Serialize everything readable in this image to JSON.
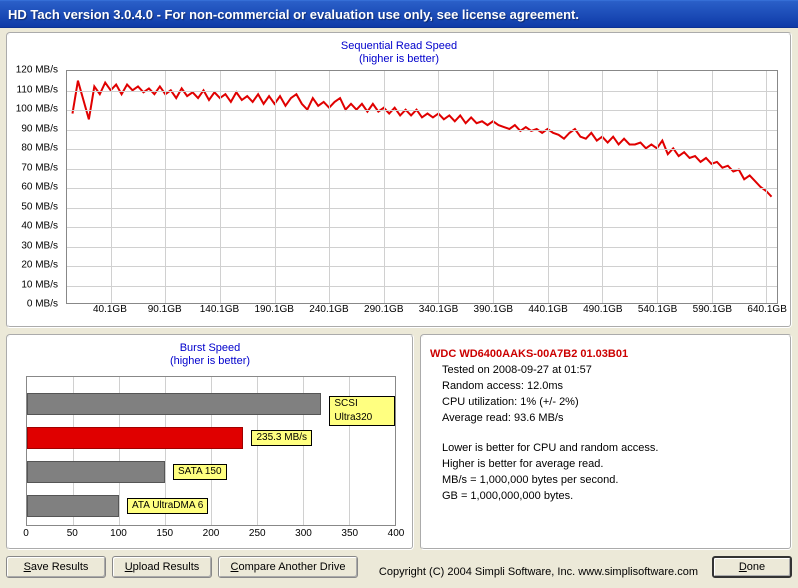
{
  "titlebar": "HD Tach version 3.0.4.0  - For non-commercial or evaluation use only, see license agreement.",
  "seq_chart": {
    "title_line1": "Sequential Read Speed",
    "title_line2": "(higher is better)",
    "ylim": [
      0,
      120
    ],
    "ytick_step": 10,
    "y_unit": "MB/s",
    "x_ticks": [
      40.1,
      90.1,
      140.1,
      190.1,
      240.1,
      290.1,
      340.1,
      390.1,
      440.1,
      490.1,
      540.1,
      590.1,
      640.1
    ],
    "x_unit": "GB",
    "x_max": 650,
    "line_color": "#e00000",
    "line_width": 2,
    "grid_color": "#d0d0d0",
    "background": "#ffffff",
    "data": [
      [
        5,
        98
      ],
      [
        10,
        115
      ],
      [
        15,
        105
      ],
      [
        20,
        95
      ],
      [
        25,
        112
      ],
      [
        30,
        108
      ],
      [
        35,
        114
      ],
      [
        40,
        110
      ],
      [
        45,
        113
      ],
      [
        50,
        108
      ],
      [
        55,
        113
      ],
      [
        60,
        110
      ],
      [
        65,
        112
      ],
      [
        70,
        109
      ],
      [
        75,
        111
      ],
      [
        80,
        108
      ],
      [
        85,
        112
      ],
      [
        90,
        108
      ],
      [
        95,
        110
      ],
      [
        100,
        106
      ],
      [
        105,
        111
      ],
      [
        110,
        107
      ],
      [
        115,
        109
      ],
      [
        120,
        106
      ],
      [
        125,
        110
      ],
      [
        130,
        105
      ],
      [
        135,
        109
      ],
      [
        140,
        106
      ],
      [
        145,
        108
      ],
      [
        150,
        104
      ],
      [
        155,
        109
      ],
      [
        160,
        105
      ],
      [
        165,
        107
      ],
      [
        170,
        104
      ],
      [
        175,
        108
      ],
      [
        180,
        103
      ],
      [
        185,
        107
      ],
      [
        190,
        103
      ],
      [
        195,
        107
      ],
      [
        200,
        102
      ],
      [
        205,
        106
      ],
      [
        210,
        108
      ],
      [
        215,
        103
      ],
      [
        220,
        100
      ],
      [
        225,
        106
      ],
      [
        230,
        102
      ],
      [
        235,
        104
      ],
      [
        240,
        101
      ],
      [
        245,
        104
      ],
      [
        250,
        106
      ],
      [
        255,
        100
      ],
      [
        260,
        103
      ],
      [
        265,
        100
      ],
      [
        270,
        103
      ],
      [
        275,
        99
      ],
      [
        280,
        103
      ],
      [
        285,
        99
      ],
      [
        290,
        101
      ],
      [
        295,
        98
      ],
      [
        300,
        101
      ],
      [
        305,
        97
      ],
      [
        310,
        100
      ],
      [
        315,
        97
      ],
      [
        320,
        100
      ],
      [
        325,
        96
      ],
      [
        330,
        98
      ],
      [
        335,
        96
      ],
      [
        340,
        98
      ],
      [
        345,
        95
      ],
      [
        350,
        97
      ],
      [
        355,
        94
      ],
      [
        360,
        97
      ],
      [
        365,
        93
      ],
      [
        370,
        96
      ],
      [
        375,
        93
      ],
      [
        380,
        94
      ],
      [
        385,
        92
      ],
      [
        390,
        94
      ],
      [
        395,
        92
      ],
      [
        400,
        91
      ],
      [
        405,
        90
      ],
      [
        410,
        92
      ],
      [
        415,
        89
      ],
      [
        420,
        91
      ],
      [
        425,
        89
      ],
      [
        430,
        90
      ],
      [
        435,
        88
      ],
      [
        440,
        90
      ],
      [
        445,
        88
      ],
      [
        450,
        87
      ],
      [
        455,
        85
      ],
      [
        460,
        88
      ],
      [
        465,
        90
      ],
      [
        470,
        86
      ],
      [
        475,
        85
      ],
      [
        480,
        88
      ],
      [
        485,
        84
      ],
      [
        490,
        86
      ],
      [
        495,
        83
      ],
      [
        500,
        86
      ],
      [
        505,
        82
      ],
      [
        510,
        85
      ],
      [
        515,
        82
      ],
      [
        520,
        82
      ],
      [
        525,
        83
      ],
      [
        530,
        80
      ],
      [
        535,
        82
      ],
      [
        540,
        80
      ],
      [
        545,
        84
      ],
      [
        550,
        77
      ],
      [
        555,
        80
      ],
      [
        560,
        76
      ],
      [
        565,
        78
      ],
      [
        570,
        75
      ],
      [
        575,
        76
      ],
      [
        580,
        73
      ],
      [
        585,
        75
      ],
      [
        590,
        72
      ],
      [
        595,
        73
      ],
      [
        600,
        70
      ],
      [
        605,
        71
      ],
      [
        610,
        68
      ],
      [
        615,
        69
      ],
      [
        620,
        64
      ],
      [
        625,
        66
      ],
      [
        630,
        63
      ],
      [
        635,
        60
      ],
      [
        640,
        58
      ],
      [
        645,
        55
      ]
    ]
  },
  "burst_chart": {
    "title_line1": "Burst Speed",
    "title_line2": "(higher is better)",
    "xlim": [
      0,
      400
    ],
    "xtick_step": 50,
    "bars": [
      {
        "value": 320,
        "label": "SCSI Ultra320",
        "color": "#808080"
      },
      {
        "value": 235.3,
        "label": "235.3 MB/s",
        "color": "#e00000"
      },
      {
        "value": 150,
        "label": "SATA 150",
        "color": "#808080"
      },
      {
        "value": 100,
        "label": "ATA UltraDMA 6",
        "color": "#808080"
      }
    ],
    "label_bg": "#ffff80",
    "grid_color": "#d0d0d0"
  },
  "info": {
    "drive": "WDC WD6400AAKS-00A7B2 01.03B01",
    "tested_on": "Tested on 2008-09-27 at 01:57",
    "random_access": "Random access: 12.0ms",
    "cpu_util": "CPU utilization: 1% (+/- 2%)",
    "avg_read": "Average read: 93.6 MB/s",
    "note1": "Lower is better for CPU and random access.",
    "note2": "Higher is better for average read.",
    "note3": "MB/s = 1,000,000 bytes per second.",
    "note4": "GB = 1,000,000,000 bytes."
  },
  "buttons": {
    "save": "Save Results",
    "upload": "Upload Results",
    "compare": "Compare Another Drive",
    "done": "Done"
  },
  "copyright": "Copyright (C) 2004 Simpli Software, Inc. www.simplisoftware.com"
}
